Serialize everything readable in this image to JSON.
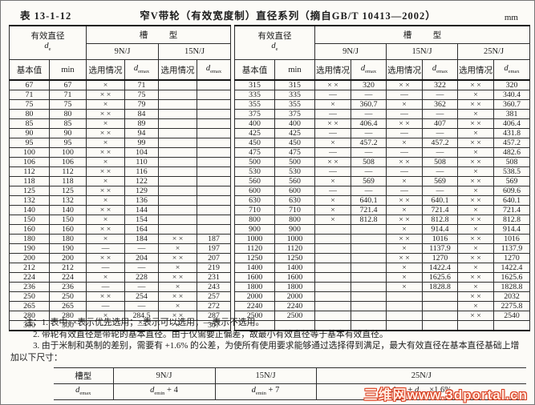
{
  "title": {
    "table_no": "表 13-1-12",
    "caption": "窄V带轮（有效宽度制）直径系列（摘自GB/T 10413—2002）",
    "unit": "mm"
  },
  "headers": {
    "effective_diameter": "有效直径",
    "groove_type": "槽　型",
    "basic_value": "基本值",
    "min_label": "min",
    "selection_label": "选用情况",
    "left_groups": [
      "9N/J",
      "15N/J"
    ],
    "right_groups": [
      "9N/J",
      "15N/J",
      "25N/J"
    ]
  },
  "sym": {
    "d": "d",
    "e": "e",
    "emax": "emax",
    "emin": "emin"
  },
  "marks_legend": {
    "preferred": "× ×",
    "allowed": "×",
    "not_used": "—"
  },
  "left_table": {
    "rows": [
      [
        "67",
        "67",
        "×",
        "71",
        "",
        ""
      ],
      [
        "71",
        "71",
        "× ×",
        "75",
        "",
        ""
      ],
      [
        "75",
        "75",
        "×",
        "79",
        "",
        ""
      ],
      [
        "80",
        "80",
        "× ×",
        "84",
        "",
        ""
      ],
      [
        "85",
        "85",
        "×",
        "89",
        "",
        ""
      ],
      [
        "90",
        "90",
        "× ×",
        "94",
        "",
        ""
      ],
      [
        "95",
        "95",
        "×",
        "99",
        "",
        ""
      ],
      [
        "100",
        "100",
        "× ×",
        "104",
        "",
        ""
      ],
      [
        "106",
        "106",
        "×",
        "110",
        "",
        ""
      ],
      [
        "112",
        "112",
        "× ×",
        "116",
        "",
        ""
      ],
      [
        "118",
        "118",
        "×",
        "122",
        "",
        ""
      ],
      [
        "125",
        "125",
        "× ×",
        "129",
        "",
        ""
      ],
      [
        "132",
        "132",
        "×",
        "136",
        "",
        ""
      ],
      [
        "140",
        "140",
        "× ×",
        "144",
        "",
        ""
      ],
      [
        "150",
        "150",
        "×",
        "154",
        "",
        ""
      ],
      [
        "160",
        "160",
        "× ×",
        "164",
        "",
        ""
      ],
      [
        "180",
        "180",
        "×",
        "184",
        "× ×",
        "187"
      ],
      [
        "190",
        "190",
        "—",
        "—",
        "×",
        "197"
      ],
      [
        "200",
        "200",
        "× ×",
        "204",
        "× ×",
        "207"
      ],
      [
        "212",
        "212",
        "—",
        "—",
        "×",
        "219"
      ],
      [
        "224",
        "224",
        "×",
        "228",
        "× ×",
        "231"
      ],
      [
        "236",
        "236",
        "—",
        "—",
        "×",
        "243"
      ],
      [
        "250",
        "250",
        "× ×",
        "254",
        "× ×",
        "257"
      ],
      [
        "265",
        "265",
        "—",
        "—",
        "×",
        "272"
      ],
      [
        "280",
        "280",
        "×",
        "284.5",
        "× ×",
        "287"
      ],
      [
        "300",
        "300",
        "—",
        "—",
        "×",
        "307"
      ]
    ]
  },
  "right_table": {
    "rows": [
      [
        "315",
        "315",
        "× ×",
        "320",
        "× ×",
        "322",
        "× ×",
        "320"
      ],
      [
        "335",
        "335",
        "—",
        "—",
        "—",
        "—",
        "×",
        "340.4"
      ],
      [
        "355",
        "355",
        "×",
        "360.7",
        "×",
        "362",
        "× ×",
        "360.7"
      ],
      [
        "375",
        "375",
        "—",
        "—",
        "—",
        "—",
        "×",
        "381"
      ],
      [
        "400",
        "400",
        "× ×",
        "406.4",
        "× ×",
        "407",
        "× ×",
        "406.4"
      ],
      [
        "425",
        "425",
        "—",
        "—",
        "—",
        "—",
        "×",
        "431.8"
      ],
      [
        "450",
        "450",
        "×",
        "457.2",
        "×",
        "457.2",
        "× ×",
        "457.2"
      ],
      [
        "475",
        "475",
        "—",
        "—",
        "—",
        "—",
        "×",
        "482.6"
      ],
      [
        "500",
        "500",
        "× ×",
        "508",
        "× ×",
        "508",
        "× ×",
        "508"
      ],
      [
        "530",
        "530",
        "—",
        "—",
        "—",
        "—",
        "×",
        "538.5"
      ],
      [
        "560",
        "560",
        "×",
        "569",
        "×",
        "569",
        "× ×",
        "569"
      ],
      [
        "600",
        "600",
        "—",
        "—",
        "—",
        "—",
        "×",
        "609.6"
      ],
      [
        "630",
        "630",
        "×",
        "640.1",
        "× ×",
        "640.1",
        "× ×",
        "640.1"
      ],
      [
        "710",
        "710",
        "×",
        "721.4",
        "×",
        "721.4",
        "×",
        "721.4"
      ],
      [
        "800",
        "800",
        "×",
        "812.8",
        "× ×",
        "812.8",
        "× ×",
        "812.8"
      ],
      [
        "900",
        "900",
        "",
        "",
        "×",
        "914.4",
        "×",
        "914.4"
      ],
      [
        "1000",
        "1000",
        "",
        "",
        "× ×",
        "1016",
        "× ×",
        "1016"
      ],
      [
        "1120",
        "1120",
        "",
        "",
        "×",
        "1137.9",
        "×",
        "1137.9"
      ],
      [
        "1250",
        "1250",
        "",
        "",
        "× ×",
        "1270",
        "× ×",
        "1270"
      ],
      [
        "1400",
        "1400",
        "",
        "",
        "×",
        "1422.4",
        "×",
        "1422.4"
      ],
      [
        "1600",
        "1600",
        "",
        "",
        "×",
        "1625.6",
        "× ×",
        "1625.6"
      ],
      [
        "1800",
        "1800",
        "",
        "",
        "×",
        "1828.8",
        "×",
        "1828.8"
      ],
      [
        "2000",
        "2000",
        "",
        "",
        "",
        "",
        "× ×",
        "2032"
      ],
      [
        "2240",
        "2240",
        "",
        "",
        "",
        "",
        "×",
        "2275.8"
      ],
      [
        "2500",
        "2500",
        "",
        "",
        "",
        "",
        "× ×",
        "2540"
      ]
    ]
  },
  "notes": [
    "注：1. 表中××表示优先选用；×表示可以选用；—表示不选用。",
    "2. 带轮有效直径是带轮的基本直径。由于仅需要正偏差，故最小有效直径等于基本有效直径。",
    "3. 由于米制和英制的差别，需要有 +1.6% 的公差，为使所有使用要求能够通过选择得到满足，最大有效直径在基本直径基础上增加以下尺寸："
  ],
  "bottom_table": {
    "header_label": "槽型",
    "columns": [
      {
        "group": "9N/J",
        "formula": [
          {
            "i": "d"
          },
          {
            "s": "emin"
          },
          {
            "t": " + 4"
          }
        ]
      },
      {
        "group": "15N/J",
        "formula": [
          {
            "i": "d"
          },
          {
            "s": "emin"
          },
          {
            "t": " + 7"
          }
        ]
      },
      {
        "group": "25N/J",
        "formula": [
          {
            "i": "d"
          },
          {
            "s": "emin"
          },
          {
            "t": " + "
          },
          {
            "i": "d"
          },
          {
            "s": "emin"
          },
          {
            "t": "×1.6%"
          }
        ]
      }
    ]
  },
  "watermark": "三维网www.3dportal.cn"
}
